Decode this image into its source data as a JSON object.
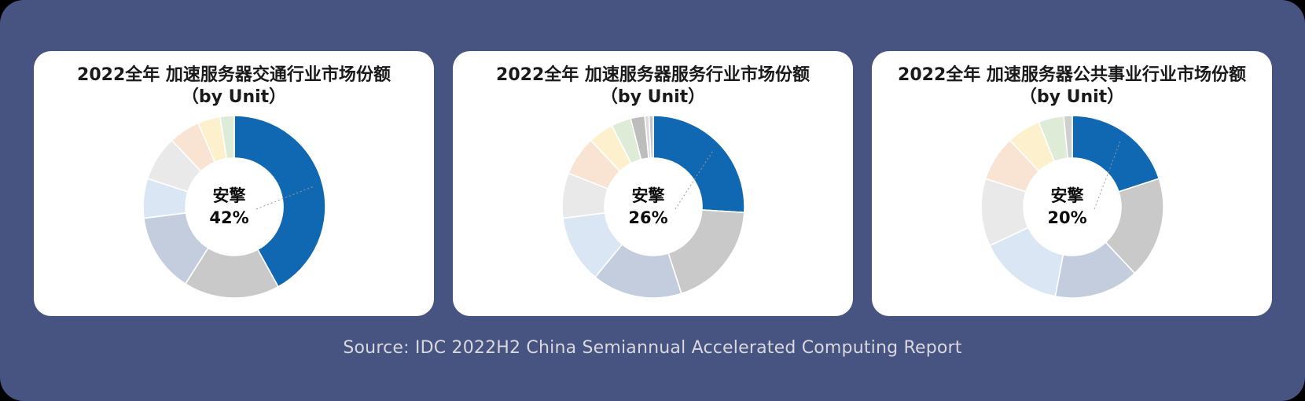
{
  "page": {
    "background_color": "#475381",
    "card_color": "#FFFFFF",
    "accent_color": "#1068B2",
    "source_note": "Source: IDC 2022H2 China Semiannual Accelerated Computing Report"
  },
  "chart_data": [
    {
      "type": "pie",
      "subtype": "donut",
      "title": "2022全年 加速服务器交通行业市场份额",
      "subtitle": "（by Unit）",
      "center_label": "安擎",
      "center_value": "42%",
      "highlighted_vendor": "安擎",
      "highlighted_share_pct": 42,
      "legend": "none",
      "segments": [
        {
          "label": "安擎",
          "value": 42,
          "color": "#1068B2"
        },
        {
          "label": "",
          "value": 17,
          "color": "#C9C9C9"
        },
        {
          "label": "",
          "value": 14,
          "color": "#C3CDDE"
        },
        {
          "label": "",
          "value": 7,
          "color": "#DBE6F4"
        },
        {
          "label": "",
          "value": 8,
          "color": "#E9E9E9"
        },
        {
          "label": "",
          "value": 5.5,
          "color": "#F9E3D2"
        },
        {
          "label": "",
          "value": 4,
          "color": "#FDF1CD"
        },
        {
          "label": "",
          "value": 2.5,
          "color": "#DDEBD7"
        }
      ]
    },
    {
      "type": "pie",
      "subtype": "donut",
      "title": "2022全年 加速服务器服务行业市场份额",
      "subtitle": "（by Unit）",
      "center_label": "安擎",
      "center_value": "26%",
      "highlighted_vendor": "安擎",
      "highlighted_share_pct": 26,
      "legend": "none",
      "segments": [
        {
          "label": "安擎",
          "value": 26,
          "color": "#1068B2"
        },
        {
          "label": "",
          "value": 19,
          "color": "#C9C9C9"
        },
        {
          "label": "",
          "value": 16,
          "color": "#C3CDDE"
        },
        {
          "label": "",
          "value": 12,
          "color": "#DBE6F4"
        },
        {
          "label": "",
          "value": 8,
          "color": "#E9E9E9"
        },
        {
          "label": "",
          "value": 7,
          "color": "#F9E3D2"
        },
        {
          "label": "",
          "value": 4.5,
          "color": "#FDF1CD"
        },
        {
          "label": "",
          "value": 3.5,
          "color": "#DDEBD7"
        },
        {
          "label": "",
          "value": 2.5,
          "color": "#BDBDBD"
        },
        {
          "label": "",
          "value": 0.75,
          "color": "#DCDCDC"
        },
        {
          "label": "",
          "value": 0.75,
          "color": "#C4C4C4"
        }
      ]
    },
    {
      "type": "pie",
      "subtype": "donut",
      "title": "2022全年 加速服务器公共事业行业市场份额",
      "subtitle": "（by Unit）",
      "center_label": "安擎",
      "center_value": "20%",
      "highlighted_vendor": "安擎",
      "highlighted_share_pct": 20,
      "legend": "none",
      "segments": [
        {
          "label": "安擎",
          "value": 20,
          "color": "#1068B2"
        },
        {
          "label": "",
          "value": 18,
          "color": "#C9C9C9"
        },
        {
          "label": "",
          "value": 15,
          "color": "#C3CDDE"
        },
        {
          "label": "",
          "value": 15,
          "color": "#DBE6F4"
        },
        {
          "label": "",
          "value": 12,
          "color": "#E9E9E9"
        },
        {
          "label": "",
          "value": 8,
          "color": "#F9E3D2"
        },
        {
          "label": "",
          "value": 6,
          "color": "#FDF1CD"
        },
        {
          "label": "",
          "value": 4.5,
          "color": "#DDEBD7"
        },
        {
          "label": "",
          "value": 1.5,
          "color": "#CFCFCF"
        }
      ]
    }
  ]
}
